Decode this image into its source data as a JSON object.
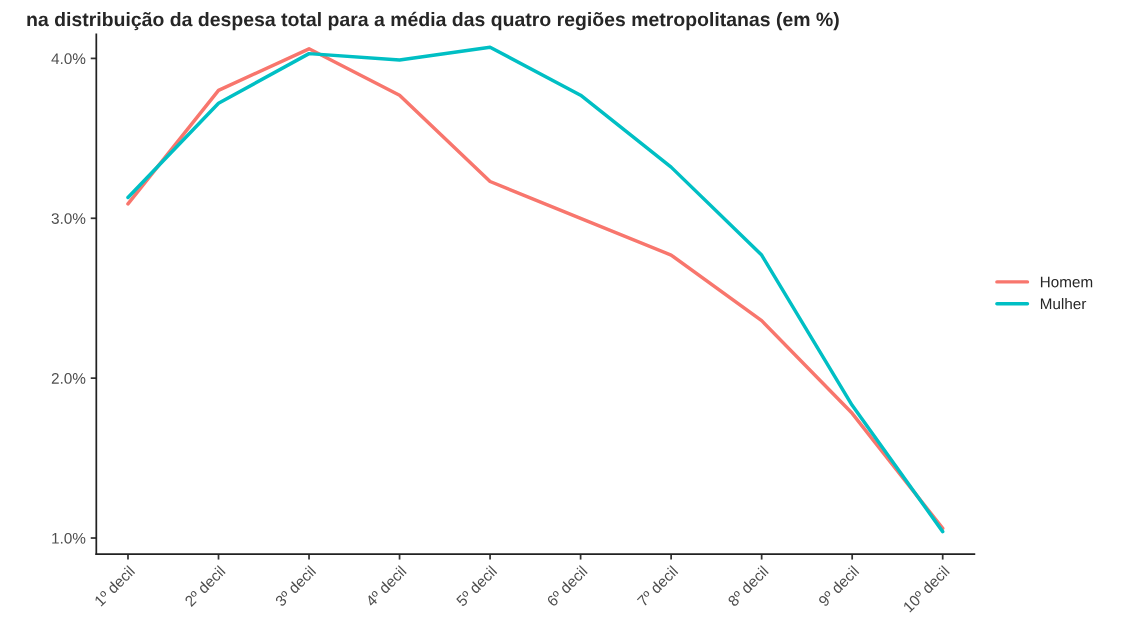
{
  "chart_data": {
    "type": "line",
    "title": "na distribuição da despesa total para a média das quatro regiões metropolitanas (em %)",
    "categories": [
      "1º decil",
      "2º decil",
      "3º decil",
      "4º decil",
      "5º decil",
      "6º decil",
      "7º decil",
      "8º decil",
      "9º decil",
      "10º decil"
    ],
    "series": [
      {
        "name": "Homem",
        "color": "#f8766d",
        "values": [
          3.09,
          3.8,
          4.06,
          3.77,
          3.23,
          3.0,
          2.77,
          2.36,
          1.78,
          1.06
        ]
      },
      {
        "name": "Mulher",
        "color": "#00bfc4",
        "values": [
          3.13,
          3.72,
          4.03,
          3.99,
          4.07,
          3.77,
          3.32,
          2.77,
          1.83,
          1.04
        ]
      }
    ],
    "ylim": [
      0.9,
      4.15
    ],
    "yticks": [
      {
        "value": 1,
        "label": "1.0%"
      },
      {
        "value": 2,
        "label": "2.0%"
      },
      {
        "value": 3,
        "label": "3.0%"
      },
      {
        "value": 4,
        "label": "4.0%"
      }
    ],
    "grid": false,
    "legend": "right",
    "marker": "none",
    "line_style": "solid"
  }
}
